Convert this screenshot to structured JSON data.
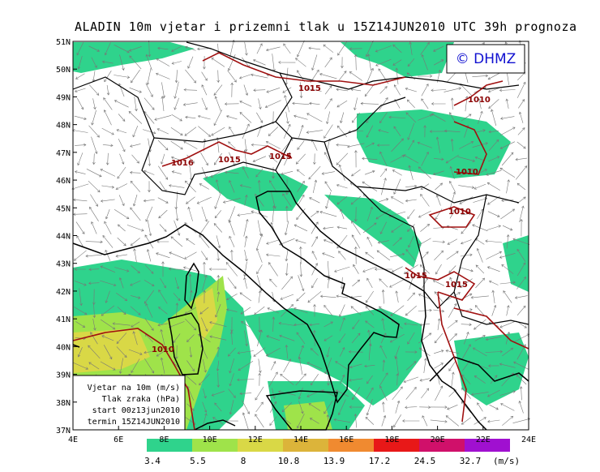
{
  "title": "ALADIN 10m vjetar i prizemni tlak u 15Z14JUN2010 UTC 39h prognoza",
  "copyright": "© DHMZ",
  "lat_labels": [
    "51N",
    "50N",
    "49N",
    "48N",
    "47N",
    "46N",
    "45N",
    "44N",
    "43N",
    "42N",
    "41N",
    "40N",
    "39N",
    "38N",
    "37N"
  ],
  "lon_labels": [
    "4E",
    "6E",
    "8E",
    "10E",
    "12E",
    "14E",
    "16E",
    "18E",
    "20E",
    "22E",
    "24E"
  ],
  "isobar_labels": [
    "1015",
    "1010",
    "1015",
    "1015",
    "1016",
    "1010",
    "1010",
    "1015",
    "1015",
    "1010"
  ],
  "info_box": [
    "Vjetar na 10m (m/s)",
    "Tlak zraka (hPa)",
    "start 00z13jun2010",
    "termin 15Z14JUN2010"
  ],
  "colorbar": {
    "bounds": [
      3.4,
      5.5,
      8,
      10.8,
      13.9,
      17.2,
      24.5,
      32.7
    ],
    "unit": "(m/s)"
  }
}
